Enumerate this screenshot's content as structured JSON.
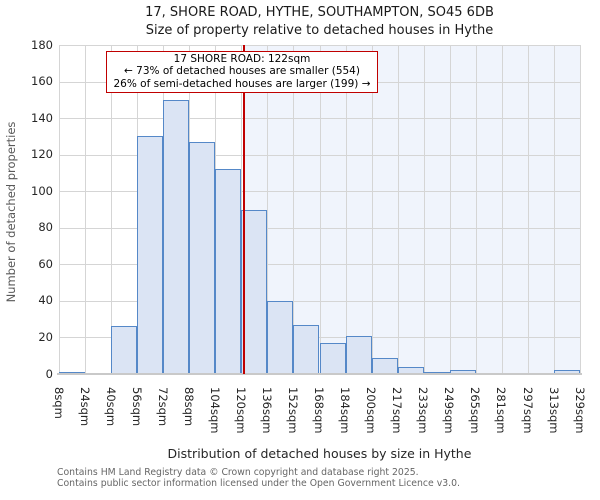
{
  "title": "17, SHORE ROAD, HYTHE, SOUTHAMPTON, SO45 6DB",
  "subtitle": "Size of property relative to detached houses in Hythe",
  "annotation": {
    "line1": "17 SHORE ROAD: 122sqm",
    "line2": "← 73% of detached houses are smaller (554)",
    "line3": "26% of semi-detached houses are larger (199) →"
  },
  "chart_data": {
    "type": "bar",
    "title": "17, SHORE ROAD, HYTHE, SOUTHAMPTON, SO45 6DB — Size of property relative to detached houses in Hythe",
    "xlabel": "Distribution of detached houses by size in Hythe",
    "ylabel": "Number of detached properties",
    "ylim": [
      0,
      180
    ],
    "ytick_step": 20,
    "grid": true,
    "categories": [
      "8sqm",
      "24sqm",
      "40sqm",
      "56sqm",
      "72sqm",
      "88sqm",
      "104sqm",
      "120sqm",
      "136sqm",
      "152sqm",
      "168sqm",
      "184sqm",
      "200sqm",
      "217sqm",
      "233sqm",
      "249sqm",
      "265sqm",
      "281sqm",
      "297sqm",
      "313sqm",
      "329sqm"
    ],
    "bin_edges_sqm": [
      8,
      24,
      40,
      56,
      72,
      88,
      104,
      120,
      136,
      152,
      168,
      184,
      200,
      217,
      233,
      249,
      265,
      281,
      297,
      313,
      329
    ],
    "values": [
      1,
      0,
      26,
      130,
      150,
      127,
      112,
      90,
      40,
      27,
      17,
      21,
      9,
      4,
      1,
      2,
      0,
      0,
      0,
      2
    ],
    "marker_value": 122,
    "marker_label": "122sqm",
    "colors": {
      "bar_fill": "#dbe4f4",
      "bar_edge": "#5588c8",
      "marker": "#c00000",
      "shade": "#f0f4fc",
      "grid": "#d5d5d5",
      "axis_line": "#c9c9c9",
      "tick_text": "#262626"
    }
  },
  "footer": {
    "line1": "Contains HM Land Registry data © Crown copyright and database right 2025.",
    "line2": "Contains public sector information licensed under the Open Government Licence v3.0."
  }
}
